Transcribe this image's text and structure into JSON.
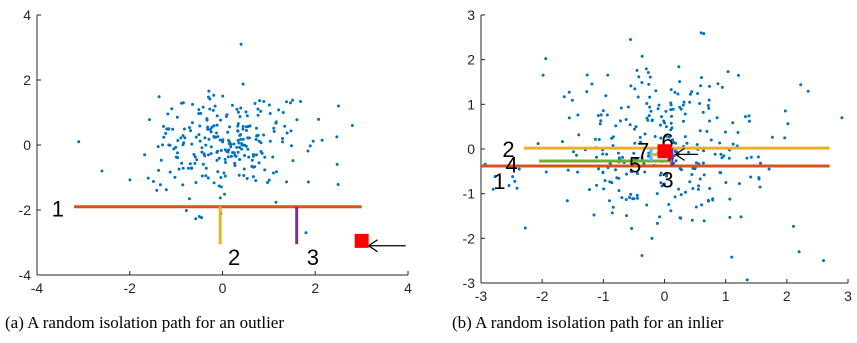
{
  "colors": {
    "points": "#0072BD",
    "split1": "#D95319",
    "split2": "#EDB120",
    "split3": "#7E2F8E",
    "split4": "#77AC30",
    "split5": "#4DBEEE",
    "split6": "#A2142F",
    "target": "#FF0000",
    "axis": "#262626"
  },
  "chart_data": [
    {
      "type": "scatter",
      "title": "",
      "xlabel": "",
      "ylabel": "",
      "xlim": [
        -4,
        4
      ],
      "ylim": [
        -4,
        4
      ],
      "xticks": [
        "-4",
        "-2",
        "0",
        "2",
        "4"
      ],
      "yticks": [
        "-4",
        "-2",
        "0",
        "2",
        "4"
      ],
      "grid": false,
      "caption": "(a) A random isolation path for an outlier",
      "seed": 7,
      "n_points": 260,
      "sd": 0.8,
      "spread_x": 1.0,
      "extra_points": [
        [
          0.4,
          3.1
        ],
        [
          -3.1,
          0.1
        ],
        [
          2.8,
          0.6
        ],
        [
          -2.6,
          -0.8
        ],
        [
          2.5,
          1.2
        ],
        [
          1.8,
          -2.7
        ],
        [
          -0.5,
          -2.2
        ]
      ],
      "splits": [
        {
          "label": "1",
          "orient": "h",
          "at": -1.9,
          "from": -3.2,
          "to": 3.0,
          "color": "split1"
        },
        {
          "label": "2",
          "orient": "v",
          "at": -0.05,
          "from": -3.05,
          "to": -1.9,
          "color": "split2"
        },
        {
          "label": "3",
          "orient": "v",
          "at": 1.6,
          "from": -3.05,
          "to": -1.9,
          "color": "split3"
        }
      ],
      "labels_pos": [
        {
          "text": "1",
          "x": -3.55,
          "y": -1.95
        },
        {
          "text": "2",
          "x": 0.25,
          "y": -3.45
        },
        {
          "text": "3",
          "x": 1.95,
          "y": -3.45
        }
      ],
      "target": {
        "x": 3.0,
        "y": -2.95
      },
      "arrow": {
        "from": [
          3.95,
          -3.1
        ],
        "to": [
          3.15,
          -3.1
        ]
      }
    },
    {
      "type": "scatter",
      "title": "",
      "xlabel": "",
      "ylabel": "",
      "xlim": [
        -3,
        3
      ],
      "ylim": [
        -3,
        3
      ],
      "xticks": [
        "-3",
        "-2",
        "-1",
        "0",
        "1",
        "2",
        "3"
      ],
      "yticks": [
        "-3",
        "-2",
        "-1",
        "0",
        "1",
        "2",
        "3"
      ],
      "grid": false,
      "caption": "(b) A random isolation path for an inlier",
      "seed": 21,
      "n_points": 300,
      "sd": 0.95,
      "spread_x": 1.0,
      "extra_points": [
        [
          2.6,
          -2.5
        ],
        [
          -2.8,
          -0.9
        ],
        [
          0.6,
          2.6
        ],
        [
          2.2,
          -2.3
        ],
        [
          2.9,
          0.7
        ]
      ],
      "splits": [
        {
          "label": "1",
          "orient": "h",
          "at": -0.38,
          "from": -3.0,
          "to": 2.7,
          "color": "split1"
        },
        {
          "label": "2",
          "orient": "h",
          "at": 0.02,
          "from": -2.3,
          "to": 2.7,
          "color": "split2"
        },
        {
          "label": "3",
          "orient": "v",
          "at": 0.12,
          "from": -0.38,
          "to": 0.02,
          "color": "split3"
        },
        {
          "label": "4",
          "orient": "h",
          "at": -0.27,
          "from": -2.05,
          "to": 0.12,
          "color": "split4"
        },
        {
          "label": "5",
          "orient": "v",
          "at": -0.22,
          "from": -0.27,
          "to": 0.02,
          "color": "split5"
        },
        {
          "label": "6",
          "orient": "v",
          "at": 0.08,
          "from": -0.27,
          "to": 0.02,
          "color": "split6"
        },
        {
          "label": "7",
          "orient": "h",
          "at": -0.12,
          "from": -0.22,
          "to": 0.08,
          "color": "split2"
        }
      ],
      "labels_pos": [
        {
          "text": "1",
          "x": -2.7,
          "y": -0.72
        },
        {
          "text": "2",
          "x": -2.55,
          "y": -0.0
        },
        {
          "text": "3",
          "x": 0.05,
          "y": -0.68
        },
        {
          "text": "4",
          "x": -2.5,
          "y": -0.35
        },
        {
          "text": "5",
          "x": -0.48,
          "y": -0.35
        },
        {
          "text": "6",
          "x": 0.05,
          "y": 0.18
        },
        {
          "text": "7",
          "x": -0.35,
          "y": -0.03
        }
      ],
      "target": {
        "x": 0.0,
        "y": -0.05
      },
      "arrow": {
        "from": [
          0.55,
          -0.12
        ],
        "to": [
          0.18,
          -0.12
        ]
      }
    }
  ]
}
